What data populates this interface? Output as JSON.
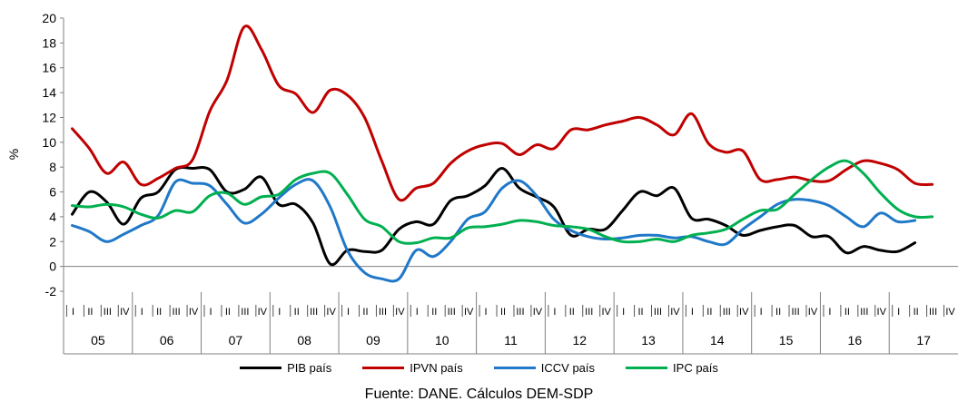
{
  "chart_data": {
    "type": "line",
    "title": "",
    "xlabel": "",
    "ylabel": "%",
    "ylim": [
      -2,
      20
    ],
    "yticks": [
      -2,
      0,
      2,
      4,
      6,
      8,
      10,
      12,
      14,
      16,
      18,
      20
    ],
    "quarter_labels": [
      "I",
      "II",
      "III",
      "IV"
    ],
    "years": [
      "05",
      "06",
      "07",
      "08",
      "09",
      "10",
      "11",
      "12",
      "13",
      "14",
      "15",
      "16",
      "17"
    ],
    "legend_position": "bottom",
    "grid": false,
    "series": [
      {
        "name": "PIB país",
        "color": "#000000",
        "values": [
          4.2,
          6.0,
          5.2,
          3.4,
          5.5,
          6.0,
          7.8,
          7.9,
          7.8,
          6.0,
          6.2,
          7.2,
          5.0,
          5.0,
          3.5,
          0.2,
          1.3,
          1.2,
          1.3,
          3.0,
          3.6,
          3.4,
          5.3,
          5.7,
          6.5,
          7.9,
          6.3,
          5.6,
          4.8,
          2.5,
          3.0,
          3.0,
          4.5,
          6.0,
          5.7,
          6.3,
          3.9,
          3.8,
          3.3,
          2.5,
          2.9,
          3.2,
          3.3,
          2.4,
          2.4,
          1.1,
          1.6,
          1.3,
          1.2,
          1.9
        ]
      },
      {
        "name": "IPVN país",
        "color": "#c00000",
        "values": [
          11.1,
          9.5,
          7.5,
          8.4,
          6.6,
          7.1,
          7.9,
          8.6,
          12.5,
          15.0,
          19.3,
          17.5,
          14.6,
          13.9,
          12.4,
          14.2,
          13.8,
          12.0,
          8.5,
          5.4,
          6.3,
          6.7,
          8.3,
          9.3,
          9.8,
          9.9,
          9.0,
          9.8,
          9.5,
          11.0,
          11.0,
          11.4,
          11.7,
          12.0,
          11.4,
          10.6,
          12.3,
          9.9,
          9.2,
          9.3,
          7.0,
          7.0,
          7.2,
          6.9,
          6.9,
          7.8,
          8.5,
          8.3,
          7.8,
          6.7,
          6.6
        ]
      },
      {
        "name": "ICCV país",
        "color": "#1f78c8",
        "values": [
          3.3,
          2.8,
          2.0,
          2.6,
          3.3,
          4.1,
          6.8,
          6.7,
          6.5,
          5.0,
          3.5,
          4.2,
          5.5,
          6.6,
          6.9,
          4.8,
          1.3,
          -0.5,
          -1.0,
          -1.0,
          1.3,
          0.8,
          2.0,
          3.8,
          4.4,
          6.3,
          6.9,
          5.7,
          3.8,
          2.9,
          2.4,
          2.2,
          2.3,
          2.5,
          2.5,
          2.3,
          2.4,
          2.0,
          1.8,
          3.0,
          4.0,
          5.0,
          5.4,
          5.3,
          4.9,
          4.0,
          3.2,
          4.3,
          3.6,
          3.7
        ]
      },
      {
        "name": "IPC país",
        "color": "#00b050",
        "values": [
          4.9,
          4.8,
          5.0,
          4.8,
          4.2,
          3.9,
          4.5,
          4.4,
          5.7,
          5.9,
          5.0,
          5.6,
          5.8,
          7.0,
          7.5,
          7.5,
          5.8,
          3.8,
          3.2,
          2.0,
          1.9,
          2.3,
          2.3,
          3.1,
          3.2,
          3.4,
          3.7,
          3.6,
          3.3,
          3.2,
          3.0,
          2.4,
          2.0,
          2.0,
          2.2,
          2.0,
          2.5,
          2.7,
          3.0,
          3.8,
          4.5,
          4.6,
          5.8,
          7.0,
          8.0,
          8.5,
          7.5,
          5.9,
          4.6,
          4.0,
          4.0
        ]
      }
    ],
    "source": "Fuente: DANE. Cálculos DEM-SDP"
  }
}
